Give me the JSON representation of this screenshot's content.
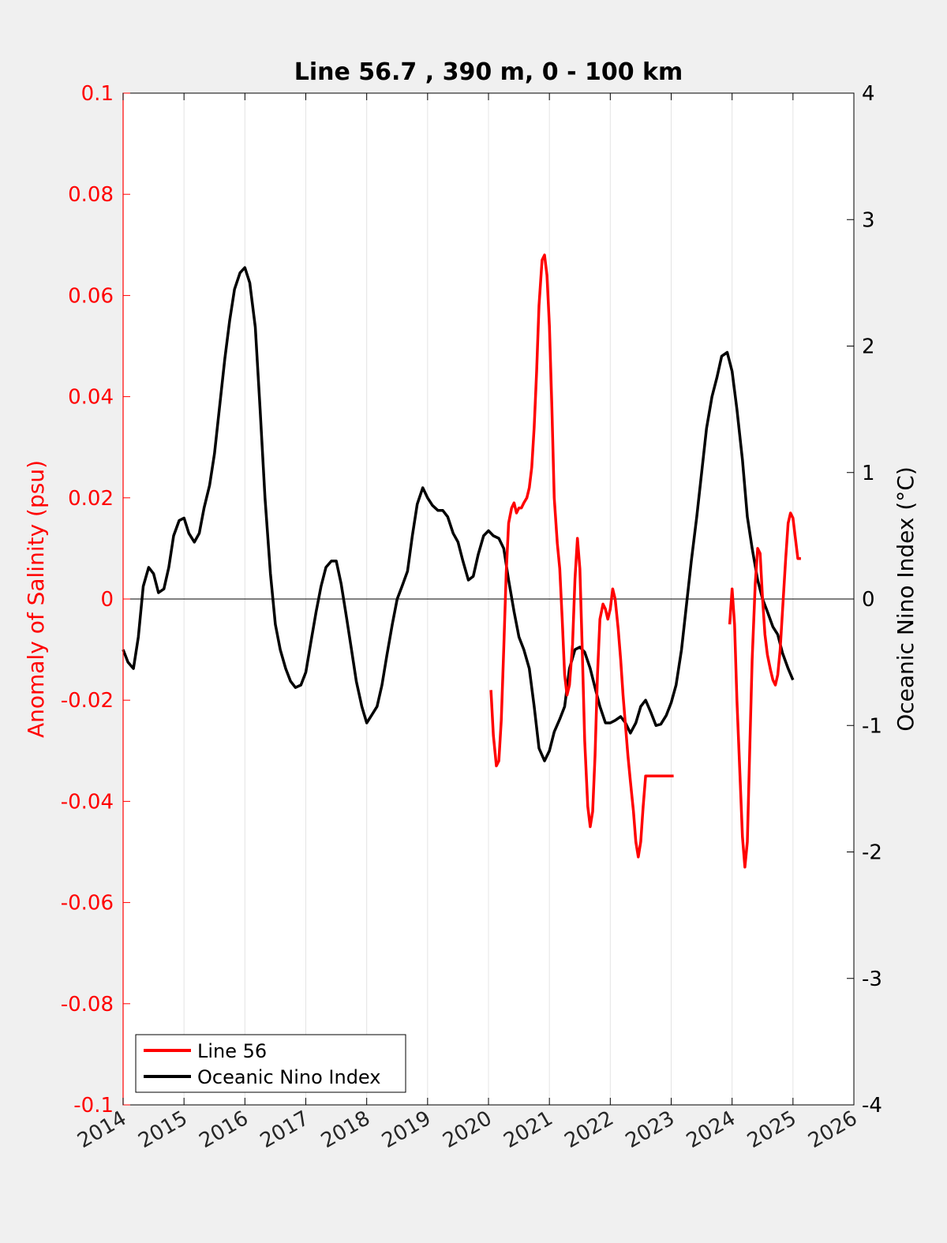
{
  "chart_data": {
    "type": "line",
    "title": "Line 56.7 , 390 m, 0 - 100 km",
    "xlabel": "",
    "ylabel_left": "Anomaly of Salinity (psu)",
    "ylabel_right": "Oceanic Nino Index (°C)",
    "xlim": [
      2014,
      2026
    ],
    "ylim_left": [
      -0.1,
      0.1
    ],
    "ylim_right": [
      -4,
      4
    ],
    "xticks": [
      "2014",
      "2015",
      "2016",
      "2017",
      "2018",
      "2019",
      "2020",
      "2021",
      "2022",
      "2023",
      "2024",
      "2025",
      "2026"
    ],
    "yticks_left": [
      "0.1",
      "0.08",
      "0.06",
      "0.04",
      "0.02",
      "0",
      "-0.02",
      "-0.04",
      "-0.06",
      "-0.08",
      "-0.1"
    ],
    "yticks_right": [
      "4",
      "3",
      "2",
      "1",
      "0",
      "-1",
      "-2",
      "-3",
      "-4"
    ],
    "grid": "vertical",
    "legend_position": "bottom-left",
    "colors": {
      "salinity": "#ff0000",
      "oni": "#000000",
      "left_axis": "#ff0000",
      "right_axis": "#000000"
    },
    "series": [
      {
        "name": "Line 56",
        "axis": "left",
        "x": [
          2020.04,
          2020.08,
          2020.13,
          2020.17,
          2020.21,
          2020.25,
          2020.29,
          2020.33,
          2020.38,
          2020.42,
          2020.46,
          2020.5,
          2020.54,
          2020.58,
          2020.63,
          2020.67,
          2020.71,
          2020.75,
          2020.79,
          2020.83,
          2020.88,
          2020.92,
          2020.96,
          2021.0,
          2021.04,
          2021.08,
          2021.13,
          2021.17,
          2021.21,
          2021.25,
          2021.29,
          2021.33,
          2021.38,
          2021.42,
          2021.46,
          2021.5,
          2021.54,
          2021.58,
          2021.63,
          2021.67,
          2021.71,
          2021.75,
          2021.79,
          2021.83,
          2021.88,
          2021.92,
          2021.96,
          2022.0,
          2022.04,
          2022.08,
          2022.13,
          2022.17,
          2022.21,
          2022.25,
          2022.29,
          2022.33,
          2022.38,
          2022.42,
          2022.46,
          2022.5,
          2022.54,
          2022.58,
          2022.63,
          2022.67,
          2022.71,
          2022.75,
          2022.79,
          2022.83,
          2022.88,
          2022.92,
          2022.96,
          2023.0,
          2023.04
        ],
        "values": [
          -0.018,
          -0.027,
          -0.033,
          -0.032,
          -0.024,
          -0.01,
          0.005,
          0.015,
          0.018,
          0.019,
          0.017,
          0.018,
          0.018,
          0.019,
          0.02,
          0.022,
          0.026,
          0.034,
          0.045,
          0.058,
          0.067,
          0.068,
          0.064,
          0.054,
          0.038,
          0.02,
          0.011,
          0.006,
          -0.004,
          -0.015,
          -0.019,
          -0.017,
          -0.009,
          0.004,
          0.012,
          0.006,
          -0.01,
          -0.028,
          -0.041,
          -0.045,
          -0.042,
          -0.031,
          -0.015,
          -0.004,
          -0.001,
          -0.002,
          -0.004,
          -0.002,
          0.002,
          0.0,
          -0.006,
          -0.012,
          -0.019,
          -0.025,
          -0.031,
          -0.036,
          -0.042,
          -0.048,
          -0.051,
          -0.048,
          -0.041,
          -0.035,
          -0.035,
          -0.035,
          -0.035,
          -0.035,
          -0.035,
          -0.035,
          -0.035,
          -0.035,
          -0.035,
          -0.035,
          -0.035
        ],
        "segments": [
          {
            "x": [
              2020.04,
              2020.08,
              2020.13,
              2020.17,
              2020.21,
              2020.25,
              2020.29,
              2020.33,
              2020.38,
              2020.42,
              2020.46,
              2020.5,
              2020.54,
              2020.58,
              2020.63,
              2020.67,
              2020.71,
              2020.75,
              2020.79,
              2020.83,
              2020.88,
              2020.92,
              2020.96,
              2021.0,
              2021.04,
              2021.08,
              2021.13,
              2021.17,
              2021.21,
              2021.25,
              2021.29,
              2021.33,
              2021.38,
              2021.42,
              2021.46,
              2021.5,
              2021.54,
              2021.58,
              2021.63,
              2021.67,
              2021.71,
              2021.75,
              2021.79,
              2021.83,
              2021.88,
              2021.92,
              2021.96,
              2022.0,
              2022.04,
              2022.08,
              2022.13,
              2022.17,
              2022.21,
              2022.25,
              2022.29,
              2022.33,
              2022.38,
              2022.42,
              2022.46,
              2022.5,
              2022.54,
              2022.58,
              2022.63,
              2022.67,
              2022.71,
              2022.75,
              2022.79,
              2022.83,
              2022.88,
              2022.92,
              2022.96,
              2023.0,
              2023.04
            ],
            "y": [
              -0.018,
              -0.027,
              -0.033,
              -0.032,
              -0.024,
              -0.01,
              0.005,
              0.015,
              0.018,
              0.019,
              0.017,
              0.018,
              0.018,
              0.019,
              0.02,
              0.022,
              0.026,
              0.034,
              0.045,
              0.058,
              0.067,
              0.068,
              0.064,
              0.054,
              0.038,
              0.02,
              0.011,
              0.006,
              -0.004,
              -0.015,
              -0.019,
              -0.017,
              -0.009,
              0.004,
              0.012,
              0.006,
              -0.01,
              -0.028,
              -0.041,
              -0.045,
              -0.042,
              -0.031,
              -0.015,
              -0.004,
              -0.001,
              -0.002,
              -0.004,
              -0.002,
              0.002,
              0.0,
              -0.006,
              -0.012,
              -0.019,
              -0.025,
              -0.031,
              -0.036,
              -0.042,
              -0.048,
              -0.051,
              -0.048,
              -0.041,
              -0.035,
              -0.035,
              -0.035,
              -0.035,
              -0.035,
              -0.035,
              -0.035,
              -0.035,
              -0.035,
              -0.035,
              -0.035,
              -0.035
            ]
          },
          {
            "x": [
              2023.96,
              2024.0,
              2024.04,
              2024.08,
              2024.13,
              2024.17,
              2024.21,
              2024.25,
              2024.29,
              2024.33,
              2024.38,
              2024.42,
              2024.46,
              2024.5,
              2024.54,
              2024.58,
              2024.63,
              2024.67,
              2024.71,
              2024.75,
              2024.79,
              2024.83,
              2024.88,
              2024.92,
              2024.96,
              2025.0,
              2025.04,
              2025.08,
              2025.13
            ],
            "y": [
              -0.005,
              0.002,
              -0.005,
              -0.02,
              -0.035,
              -0.047,
              -0.053,
              -0.048,
              -0.03,
              -0.012,
              0.003,
              0.01,
              0.009,
              0.0,
              -0.007,
              -0.011,
              -0.014,
              -0.016,
              -0.017,
              -0.015,
              -0.01,
              -0.002,
              0.008,
              0.015,
              0.017,
              0.016,
              0.012,
              0.008,
              0.008
            ]
          }
        ]
      },
      {
        "name": "Oceanic Nino Index",
        "axis": "right",
        "x": [
          2014.0,
          2014.08,
          2014.17,
          2014.25,
          2014.33,
          2014.42,
          2014.5,
          2014.58,
          2014.67,
          2014.75,
          2014.83,
          2014.92,
          2015.0,
          2015.08,
          2015.17,
          2015.25,
          2015.33,
          2015.42,
          2015.5,
          2015.58,
          2015.67,
          2015.75,
          2015.83,
          2015.92,
          2016.0,
          2016.08,
          2016.17,
          2016.25,
          2016.33,
          2016.42,
          2016.5,
          2016.58,
          2016.67,
          2016.75,
          2016.83,
          2016.92,
          2017.0,
          2017.08,
          2017.17,
          2017.25,
          2017.33,
          2017.42,
          2017.5,
          2017.58,
          2017.67,
          2017.75,
          2017.83,
          2017.92,
          2018.0,
          2018.08,
          2018.17,
          2018.25,
          2018.33,
          2018.42,
          2018.5,
          2018.58,
          2018.67,
          2018.75,
          2018.83,
          2018.92,
          2019.0,
          2019.08,
          2019.17,
          2019.25,
          2019.33,
          2019.42,
          2019.5,
          2019.58,
          2019.67,
          2019.75,
          2019.83,
          2019.92,
          2020.0,
          2020.08,
          2020.17,
          2020.25,
          2020.33,
          2020.42,
          2020.5,
          2020.58,
          2020.67,
          2020.75,
          2020.83,
          2020.92,
          2021.0,
          2021.08,
          2021.17,
          2021.25,
          2021.33,
          2021.42,
          2021.5,
          2021.58,
          2021.67,
          2021.75,
          2021.83,
          2021.92,
          2022.0,
          2022.08,
          2022.17,
          2022.25,
          2022.33,
          2022.42,
          2022.5,
          2022.58,
          2022.67,
          2022.75,
          2022.83,
          2022.92,
          2023.0,
          2023.08,
          2023.17,
          2023.25,
          2023.33,
          2023.42,
          2023.5,
          2023.58,
          2023.67,
          2023.75,
          2023.83,
          2023.92,
          2024.0,
          2024.08,
          2024.17,
          2024.25,
          2024.33,
          2024.42,
          2024.5,
          2024.58,
          2024.67,
          2024.75,
          2024.83,
          2024.92,
          2025.0
        ],
        "values": [
          -0.4,
          -0.5,
          -0.55,
          -0.3,
          0.1,
          0.25,
          0.2,
          0.05,
          0.08,
          0.25,
          0.5,
          0.62,
          0.64,
          0.52,
          0.45,
          0.52,
          0.72,
          0.9,
          1.15,
          1.5,
          1.9,
          2.2,
          2.45,
          2.58,
          2.62,
          2.5,
          2.15,
          1.5,
          0.8,
          0.2,
          -0.2,
          -0.4,
          -0.55,
          -0.65,
          -0.7,
          -0.68,
          -0.58,
          -0.35,
          -0.1,
          0.1,
          0.25,
          0.3,
          0.3,
          0.12,
          -0.15,
          -0.4,
          -0.65,
          -0.85,
          -0.98,
          -0.92,
          -0.85,
          -0.68,
          -0.45,
          -0.2,
          0.0,
          0.1,
          0.22,
          0.5,
          0.75,
          0.88,
          0.8,
          0.74,
          0.7,
          0.7,
          0.65,
          0.52,
          0.45,
          0.3,
          0.15,
          0.18,
          0.35,
          0.5,
          0.54,
          0.5,
          0.48,
          0.4,
          0.15,
          -0.1,
          -0.3,
          -0.4,
          -0.55,
          -0.85,
          -1.18,
          -1.28,
          -1.2,
          -1.05,
          -0.95,
          -0.85,
          -0.55,
          -0.4,
          -0.38,
          -0.42,
          -0.55,
          -0.7,
          -0.85,
          -0.98,
          -0.98,
          -0.96,
          -0.93,
          -0.98,
          -1.06,
          -0.98,
          -0.85,
          -0.8,
          -0.9,
          -1.0,
          -0.99,
          -0.92,
          -0.82,
          -0.68,
          -0.4,
          -0.05,
          0.3,
          0.65,
          1.0,
          1.35,
          1.6,
          1.75,
          1.92,
          1.95,
          1.8,
          1.5,
          1.1,
          0.65,
          0.4,
          0.15,
          0.0,
          -0.1,
          -0.22,
          -0.28,
          -0.43,
          -0.55,
          -0.64
        ]
      }
    ]
  },
  "legend": {
    "items": [
      "Line 56",
      "Oceanic Nino Index"
    ]
  }
}
